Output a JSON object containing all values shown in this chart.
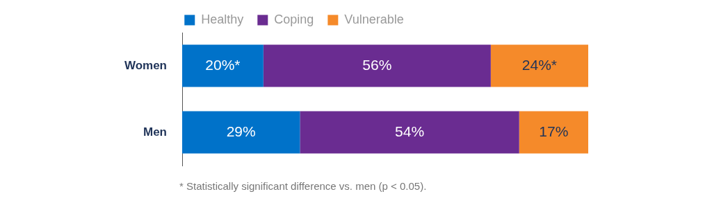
{
  "chart_data": {
    "type": "bar",
    "orientation": "horizontal",
    "stacked": true,
    "categories": [
      "Women",
      "Men"
    ],
    "series": [
      {
        "name": "Healthy",
        "color": "#0072c9",
        "values": [
          20,
          29
        ],
        "value_labels": [
          "20%*",
          "29%"
        ]
      },
      {
        "name": "Coping",
        "color": "#6a2c91",
        "values": [
          56,
          54
        ],
        "value_labels": [
          "56%",
          "54%"
        ]
      },
      {
        "name": "Vulnerable",
        "color": "#f58a2a",
        "values": [
          24,
          17
        ],
        "value_labels": [
          "24%*",
          "17%"
        ]
      }
    ],
    "xlim": [
      0,
      100
    ],
    "tick_labels": "y",
    "legend": "top",
    "annotations": [
      "* Statistically significant difference vs. men (p < 0.05)."
    ]
  }
}
